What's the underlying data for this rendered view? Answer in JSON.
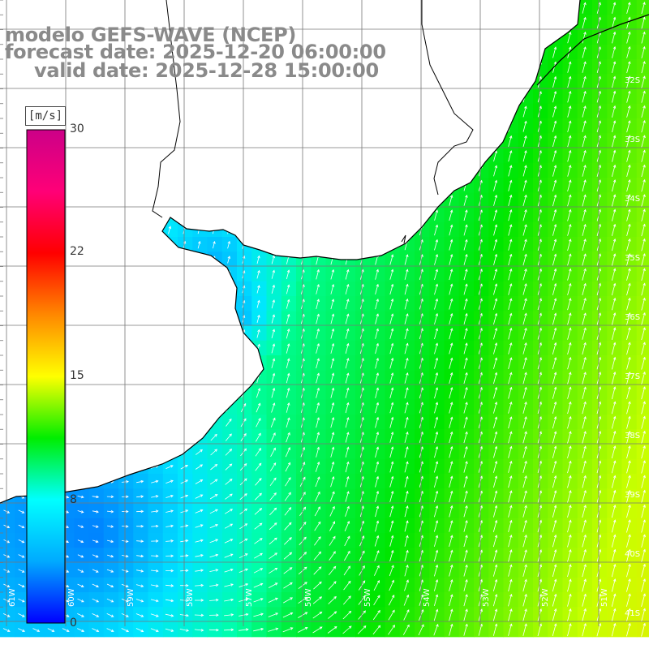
{
  "title": {
    "line1": "modelo GEFS-WAVE (NCEP)",
    "line2": "forecast date: 2025-12-20 06:00:00",
    "line3": "valid date: 2025-12-28 15:00:00"
  },
  "colorbar": {
    "unit": "[m/s]",
    "ticks": [
      "30",
      "22",
      "15",
      "8",
      "0"
    ],
    "colors": [
      "#0000ff",
      "#00aaff",
      "#00ffff",
      "#00ee00",
      "#ffff00",
      "#ff8800",
      "#ff0000",
      "#ff0077",
      "#cc0088"
    ]
  },
  "axes": {
    "lat_labels": [
      "32S",
      "33S",
      "34S",
      "35S",
      "36S",
      "37S",
      "38S",
      "39S",
      "40S",
      "41S"
    ],
    "lon_labels": [
      "61W",
      "60W",
      "59W",
      "58W",
      "57W",
      "56W",
      "55W",
      "54W",
      "53W",
      "52W",
      "51W"
    ]
  },
  "colors": {
    "land": "#ffffff",
    "coast": "#000000",
    "grid": "#777777",
    "arrows": "#ffffff",
    "title": "#8a8a8a"
  }
}
